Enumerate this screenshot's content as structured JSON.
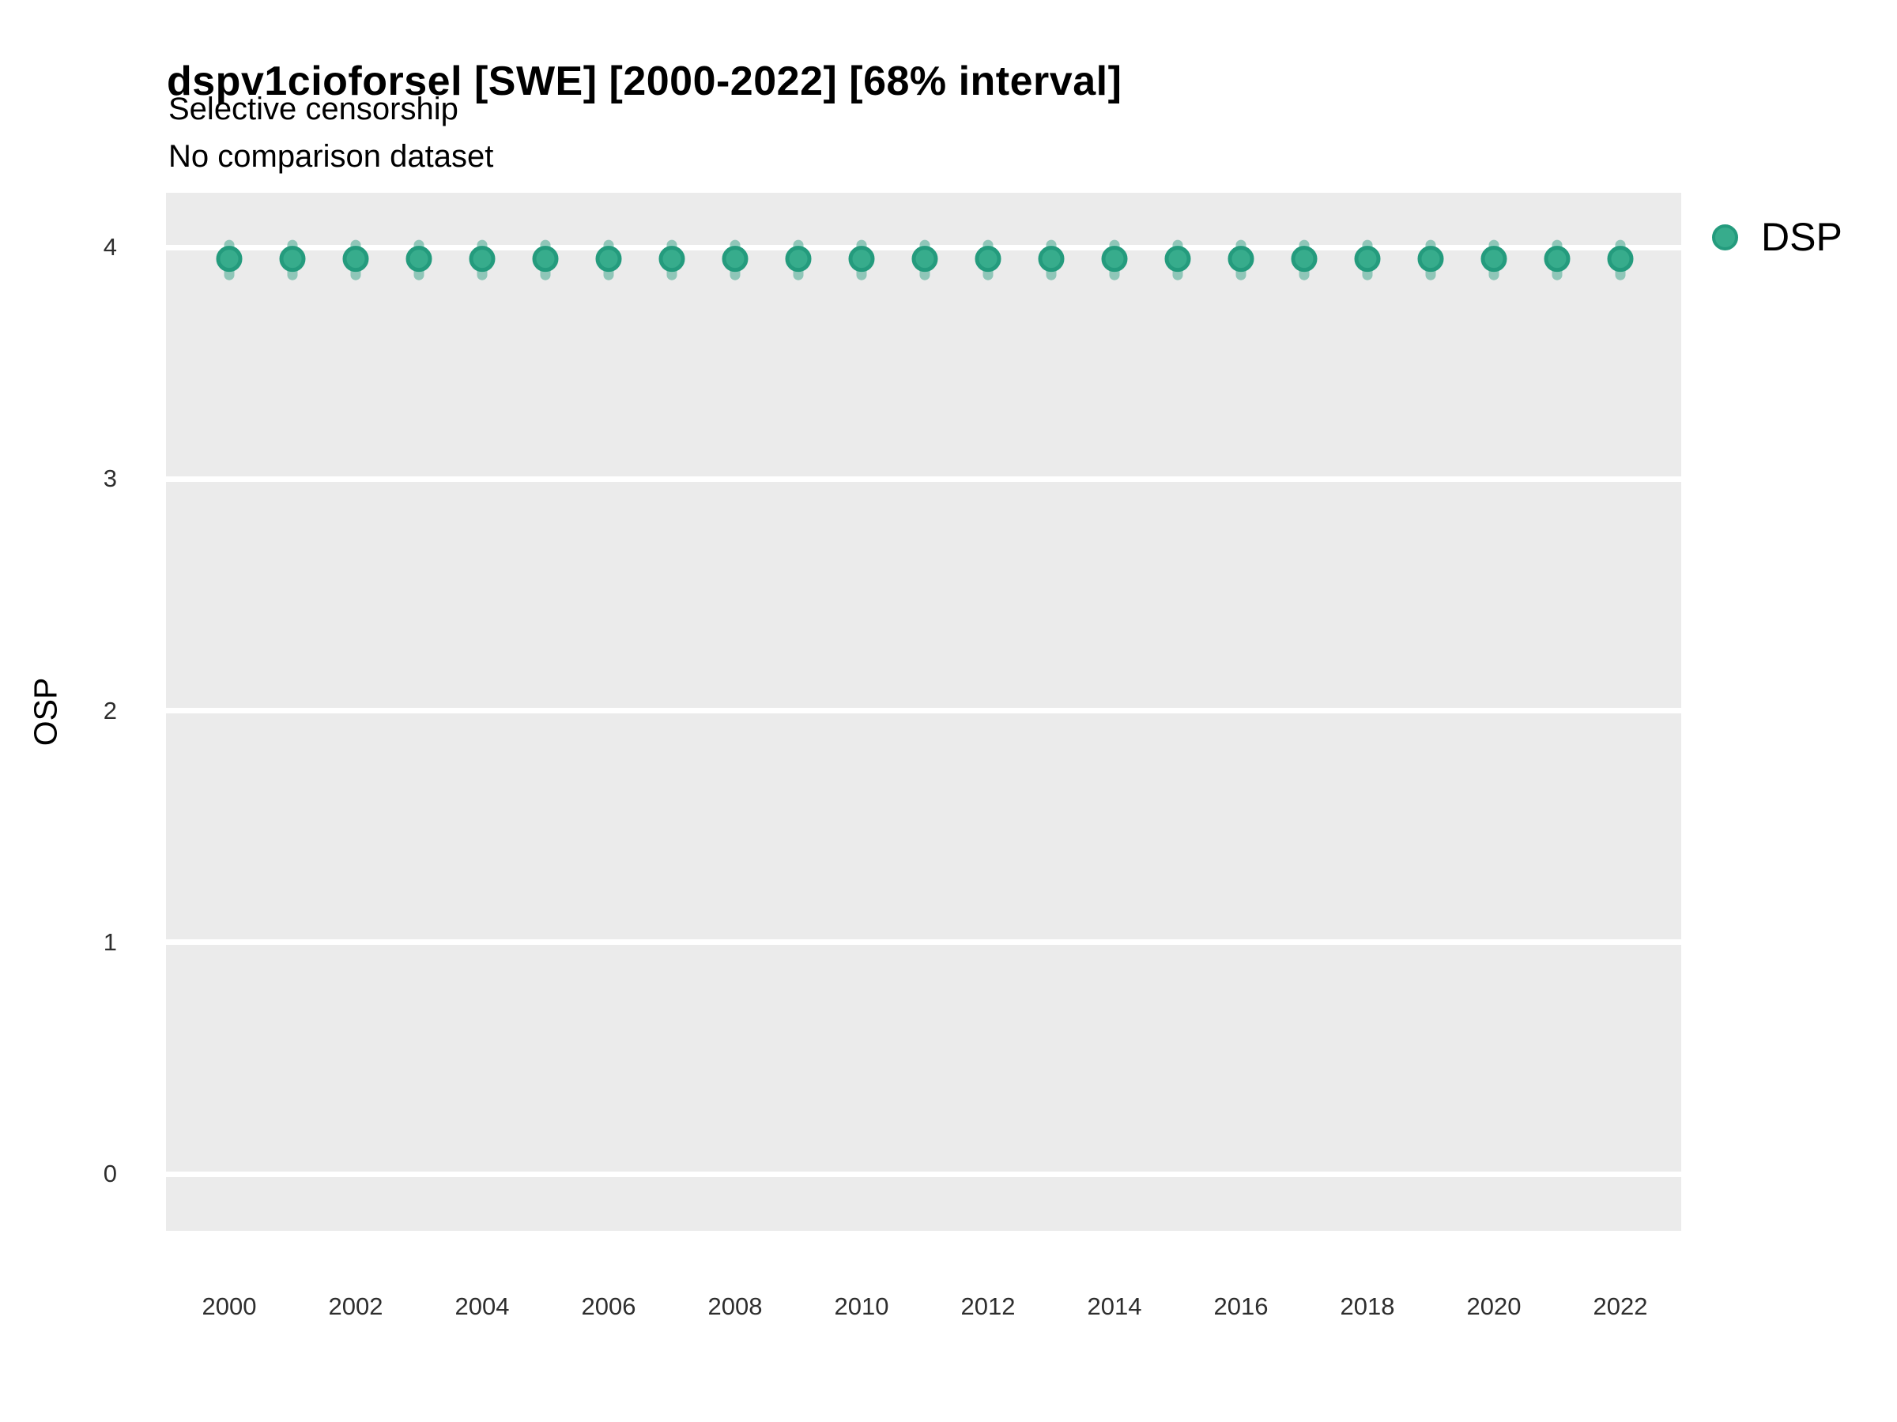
{
  "title": "dspv1cioforsel [SWE] [2000-2022] [68% interval]",
  "subtitle_line1": "Selective censorship",
  "subtitle_line2": "No comparison dataset",
  "legend": {
    "position": "right-top",
    "items": [
      {
        "label": "DSP",
        "marker": "circle-icon",
        "fill": "#37AC8C",
        "stroke": "#249B7D"
      }
    ]
  },
  "axes": {
    "y_label": "OSP",
    "y_tick_labels": [
      "0",
      "1",
      "2",
      "3",
      "4"
    ],
    "x_tick_labels": [
      "2000",
      "2002",
      "2004",
      "2006",
      "2008",
      "2010",
      "2012",
      "2014",
      "2016",
      "2018",
      "2020",
      "2022"
    ]
  },
  "chart_data": {
    "type": "scatter",
    "title": "dspv1cioforsel [SWE] [2000-2022] [68% interval]",
    "subtitle": [
      "Selective censorship",
      "No comparison dataset"
    ],
    "xlabel": "",
    "ylabel": "OSP",
    "interval_level": "68%",
    "x": [
      2000,
      2001,
      2002,
      2003,
      2004,
      2005,
      2006,
      2007,
      2008,
      2009,
      2010,
      2011,
      2012,
      2013,
      2014,
      2015,
      2016,
      2017,
      2018,
      2019,
      2020,
      2021,
      2022
    ],
    "series": [
      {
        "name": "DSP",
        "values": [
          3.95,
          3.95,
          3.95,
          3.95,
          3.95,
          3.95,
          3.95,
          3.95,
          3.95,
          3.95,
          3.95,
          3.95,
          3.95,
          3.95,
          3.95,
          3.95,
          3.95,
          3.95,
          3.95,
          3.95,
          3.95,
          3.95,
          3.95
        ],
        "interval_low": [
          3.88,
          3.88,
          3.88,
          3.88,
          3.88,
          3.88,
          3.88,
          3.88,
          3.88,
          3.88,
          3.88,
          3.88,
          3.88,
          3.88,
          3.88,
          3.88,
          3.88,
          3.88,
          3.88,
          3.88,
          3.88,
          3.88,
          3.88
        ],
        "interval_high": [
          4.01,
          4.01,
          4.01,
          4.01,
          4.01,
          4.01,
          4.01,
          4.01,
          4.01,
          4.01,
          4.01,
          4.01,
          4.01,
          4.01,
          4.01,
          4.01,
          4.01,
          4.01,
          4.01,
          4.01,
          4.01,
          4.01,
          4.01
        ]
      }
    ],
    "x_ticks": [
      2000,
      2002,
      2004,
      2006,
      2008,
      2010,
      2012,
      2014,
      2016,
      2018,
      2020,
      2022
    ],
    "y_ticks": [
      0,
      1,
      2,
      3,
      4
    ],
    "xlim": [
      1999,
      2023
    ],
    "ylim": [
      -0.25,
      4.24
    ],
    "grid": "major-horizontal-only",
    "legend_position": "right-top",
    "colors": {
      "panel_background": "#EBEBEB",
      "gridline": "#FFFFFF",
      "point_fill": "#37AC8C",
      "point_stroke": "#249B7D",
      "interval_bar": "rgba(32,154,121,0.45)",
      "text": "#000000",
      "tick_text": "#2e2e2e"
    }
  }
}
